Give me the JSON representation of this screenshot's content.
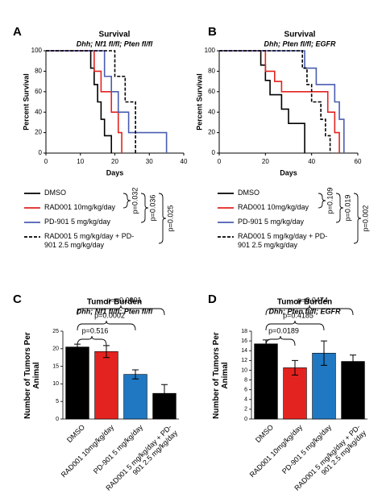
{
  "chart_data": [
    {
      "type": "step",
      "panel": "A",
      "title": "Survival",
      "subtitle": "Dhh; Nf1 fl/fl; Pten fl/fl",
      "x_label": "Days",
      "y_label": "Percent Survival",
      "xlim": [
        0,
        40
      ],
      "xticks": [
        0,
        10,
        20,
        30,
        40
      ],
      "ylim": [
        0,
        100
      ],
      "yticks": [
        0,
        20,
        40,
        60,
        80,
        100
      ],
      "series": [
        {
          "name": "DMSO",
          "color": "#000000",
          "dashed": false,
          "x": [
            0,
            13,
            14,
            15,
            16,
            17,
            19
          ],
          "values": [
            100,
            83,
            67,
            50,
            33,
            17,
            0
          ]
        },
        {
          "name": "RAD001 10mg/kg/day",
          "color": "#e3231f",
          "dashed": false,
          "x": [
            0,
            14,
            16,
            19,
            21,
            22
          ],
          "values": [
            100,
            80,
            60,
            40,
            20,
            0
          ]
        },
        {
          "name": "PD-901 5 mg/kg/day",
          "color": "#4a5db0",
          "dashed": false,
          "x": [
            0,
            17,
            19,
            21,
            24,
            35
          ],
          "values": [
            100,
            75,
            60,
            40,
            20,
            0
          ]
        },
        {
          "name": "RAD001 5 mg/kg/day + PD-901 2.5 mg/kg/day",
          "color": "#000000",
          "dashed": true,
          "x": [
            0,
            20,
            23,
            26
          ],
          "values": [
            100,
            75,
            50,
            0
          ]
        }
      ],
      "p_values": [
        "p=0.032",
        "p=0.036",
        "p=0.025"
      ]
    },
    {
      "type": "step",
      "panel": "B",
      "title": "Survival",
      "subtitle": "Dhh; Pten fl/fl; EGFR",
      "x_label": "Days",
      "y_label": "Percent Survival",
      "xlim": [
        0,
        60
      ],
      "xticks": [
        0,
        20,
        40,
        60
      ],
      "ylim": [
        0,
        100
      ],
      "yticks": [
        0,
        20,
        40,
        60,
        80,
        100
      ],
      "series": [
        {
          "name": "DMSO",
          "color": "#000000",
          "dashed": false,
          "x": [
            0,
            18,
            20,
            22,
            27,
            30,
            37
          ],
          "values": [
            100,
            86,
            71,
            57,
            43,
            29,
            0
          ]
        },
        {
          "name": "RAD001 10mg/kg/day",
          "color": "#e3231f",
          "dashed": false,
          "x": [
            0,
            20,
            24,
            27,
            47,
            50,
            52
          ],
          "values": [
            100,
            80,
            70,
            60,
            40,
            20,
            0
          ]
        },
        {
          "name": "PD-901 5 mg/kg/day",
          "color": "#4a5db0",
          "dashed": false,
          "x": [
            0,
            37,
            42,
            50,
            52,
            54
          ],
          "values": [
            100,
            83,
            67,
            50,
            33,
            0
          ]
        },
        {
          "name": "RAD001 5 mg/kg/day + PD-901 2.5 mg/kg/day",
          "color": "#000000",
          "dashed": true,
          "x": [
            0,
            36,
            38,
            40,
            44,
            46,
            48
          ],
          "values": [
            100,
            83,
            67,
            50,
            33,
            17,
            0
          ]
        }
      ],
      "p_values": [
        "p=0.109",
        "p=0.019",
        "p=0.002"
      ]
    },
    {
      "type": "bar",
      "panel": "C",
      "title": "Tumor Burden",
      "subtitle": "Dhh; Nf1 fl/fl; Pten fl/fl",
      "y_label": "Number of Tumors Per Animal",
      "categories": [
        "DMSO",
        "RAD001 10mg/kg/day",
        "PD-901 5 mg/kg/day",
        "RAD001 5 mg/kg/day + PD-901 2.5 mg/kg/day"
      ],
      "values": [
        20.5,
        19.2,
        12.7,
        7.3
      ],
      "errors": [
        0.8,
        1.7,
        1.3,
        2.5
      ],
      "colors": [
        "#000000",
        "#e3231f",
        "#1f78c1",
        "#000000"
      ],
      "ylim": [
        0,
        25
      ],
      "yticks": [
        0,
        5,
        10,
        15,
        20,
        25
      ],
      "p_values": [
        "p=0.516",
        "p=0.0002",
        "p=<0.0001"
      ]
    },
    {
      "type": "bar",
      "panel": "D",
      "title": "Tumor Burden",
      "subtitle": "Dhh; Pten fl/fl; EGFR",
      "y_label": "Number of Tumors Per Animal",
      "categories": [
        "DMSO",
        "RAD001 10mg/kg/day",
        "PD-901 5 mg/kg/day",
        "RAD001 5 mg/kg/day + PD-901 2.5 mg/kg/day"
      ],
      "values": [
        15.4,
        10.5,
        13.5,
        11.8
      ],
      "errors": [
        0.8,
        1.5,
        2.5,
        1.3
      ],
      "colors": [
        "#000000",
        "#e3231f",
        "#1f78c1",
        "#000000"
      ],
      "ylim": [
        0,
        18
      ],
      "yticks": [
        0,
        2,
        4,
        6,
        8,
        10,
        12,
        14,
        16,
        18
      ],
      "p_values": [
        "p=0.0189",
        "p=0.4185",
        "p=0.0474"
      ]
    }
  ]
}
